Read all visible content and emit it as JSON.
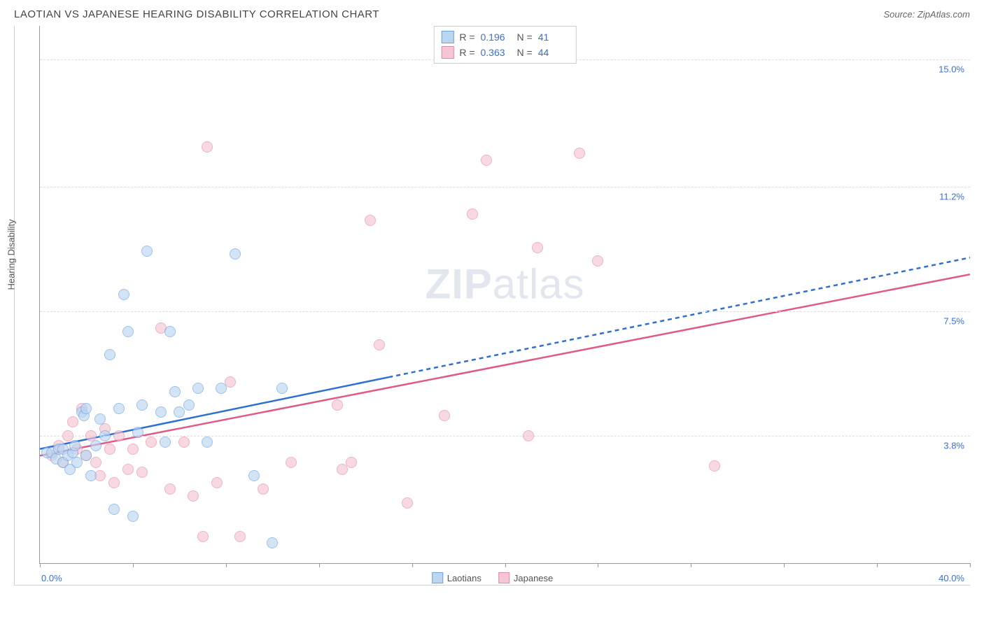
{
  "header": {
    "title": "LAOTIAN VS JAPANESE HEARING DISABILITY CORRELATION CHART",
    "source": "Source: ZipAtlas.com"
  },
  "watermark": {
    "bold": "ZIP",
    "rest": "atlas"
  },
  "chart": {
    "type": "scatter",
    "ylabel": "Hearing Disability",
    "xlim": [
      0,
      40
    ],
    "ylim": [
      0,
      16
    ],
    "x_min_label": "0.0%",
    "x_max_label": "40.0%",
    "yticks": [
      {
        "v": 3.8,
        "label": "3.8%"
      },
      {
        "v": 7.5,
        "label": "7.5%"
      },
      {
        "v": 11.2,
        "label": "11.2%"
      },
      {
        "v": 15.0,
        "label": "15.0%"
      }
    ],
    "xtick_positions": [
      0,
      4,
      8,
      12,
      16,
      20,
      24,
      28,
      32,
      36,
      40
    ],
    "background_color": "#ffffff",
    "grid_color": "#dddddd",
    "axis_color": "#999999",
    "tick_label_color": "#3b6fd4",
    "series": {
      "laotians": {
        "label": "Laotians",
        "fill": "#bcd6f2",
        "stroke": "#6aa3e0",
        "line_color": "#2f6fd0",
        "marker_radius": 8,
        "opacity": 0.65,
        "R": "0.196",
        "N": "41",
        "trend": {
          "x0": 0,
          "y0": 3.4,
          "x1": 40,
          "y1": 9.1,
          "solid_until_x": 15
        },
        "points": [
          {
            "x": 0.3,
            "y": 3.3
          },
          {
            "x": 0.5,
            "y": 3.3
          },
          {
            "x": 0.7,
            "y": 3.1
          },
          {
            "x": 0.8,
            "y": 3.4
          },
          {
            "x": 1.0,
            "y": 3.4
          },
          {
            "x": 1.0,
            "y": 3.0
          },
          {
            "x": 1.2,
            "y": 3.2
          },
          {
            "x": 1.3,
            "y": 2.8
          },
          {
            "x": 1.4,
            "y": 3.3
          },
          {
            "x": 1.5,
            "y": 3.5
          },
          {
            "x": 1.6,
            "y": 3.0
          },
          {
            "x": 1.8,
            "y": 4.5
          },
          {
            "x": 1.9,
            "y": 4.4
          },
          {
            "x": 2.0,
            "y": 3.2
          },
          {
            "x": 2.0,
            "y": 4.6
          },
          {
            "x": 2.2,
            "y": 2.6
          },
          {
            "x": 2.4,
            "y": 3.5
          },
          {
            "x": 2.6,
            "y": 4.3
          },
          {
            "x": 2.8,
            "y": 3.8
          },
          {
            "x": 3.0,
            "y": 6.2
          },
          {
            "x": 3.2,
            "y": 1.6
          },
          {
            "x": 3.4,
            "y": 4.6
          },
          {
            "x": 3.6,
            "y": 8.0
          },
          {
            "x": 3.8,
            "y": 6.9
          },
          {
            "x": 4.0,
            "y": 1.4
          },
          {
            "x": 4.2,
            "y": 3.9
          },
          {
            "x": 4.4,
            "y": 4.7
          },
          {
            "x": 4.6,
            "y": 9.3
          },
          {
            "x": 5.2,
            "y": 4.5
          },
          {
            "x": 5.4,
            "y": 3.6
          },
          {
            "x": 5.6,
            "y": 6.9
          },
          {
            "x": 5.8,
            "y": 5.1
          },
          {
            "x": 6.0,
            "y": 4.5
          },
          {
            "x": 6.4,
            "y": 4.7
          },
          {
            "x": 6.8,
            "y": 5.2
          },
          {
            "x": 7.2,
            "y": 3.6
          },
          {
            "x": 7.8,
            "y": 5.2
          },
          {
            "x": 8.4,
            "y": 9.2
          },
          {
            "x": 9.2,
            "y": 2.6
          },
          {
            "x": 10.0,
            "y": 0.6
          },
          {
            "x": 10.4,
            "y": 5.2
          }
        ]
      },
      "japanese": {
        "label": "Japanese",
        "fill": "#f5c6d3",
        "stroke": "#e48aa4",
        "line_color": "#e05a86",
        "marker_radius": 8,
        "opacity": 0.65,
        "R": "0.363",
        "N": "44",
        "trend": {
          "x0": 0,
          "y0": 3.2,
          "x1": 40,
          "y1": 8.6,
          "solid_until_x": 40
        },
        "points": [
          {
            "x": 0.5,
            "y": 3.2
          },
          {
            "x": 0.8,
            "y": 3.5
          },
          {
            "x": 1.0,
            "y": 3.0
          },
          {
            "x": 1.2,
            "y": 3.8
          },
          {
            "x": 1.4,
            "y": 4.2
          },
          {
            "x": 1.6,
            "y": 3.4
          },
          {
            "x": 1.8,
            "y": 4.6
          },
          {
            "x": 2.0,
            "y": 3.2
          },
          {
            "x": 2.2,
            "y": 3.8
          },
          {
            "x": 2.4,
            "y": 3.0
          },
          {
            "x": 2.6,
            "y": 2.6
          },
          {
            "x": 2.8,
            "y": 4.0
          },
          {
            "x": 3.0,
            "y": 3.4
          },
          {
            "x": 3.2,
            "y": 2.4
          },
          {
            "x": 3.4,
            "y": 3.8
          },
          {
            "x": 3.8,
            "y": 2.8
          },
          {
            "x": 4.0,
            "y": 3.4
          },
          {
            "x": 4.4,
            "y": 2.7
          },
          {
            "x": 4.8,
            "y": 3.6
          },
          {
            "x": 5.2,
            "y": 7.0
          },
          {
            "x": 5.6,
            "y": 2.2
          },
          {
            "x": 6.2,
            "y": 3.6
          },
          {
            "x": 6.6,
            "y": 2.0
          },
          {
            "x": 7.0,
            "y": 0.8
          },
          {
            "x": 7.2,
            "y": 12.4
          },
          {
            "x": 7.6,
            "y": 2.4
          },
          {
            "x": 8.2,
            "y": 5.4
          },
          {
            "x": 8.6,
            "y": 0.8
          },
          {
            "x": 9.6,
            "y": 2.2
          },
          {
            "x": 10.8,
            "y": 3.0
          },
          {
            "x": 12.8,
            "y": 4.7
          },
          {
            "x": 13.0,
            "y": 2.8
          },
          {
            "x": 13.4,
            "y": 3.0
          },
          {
            "x": 14.2,
            "y": 10.2
          },
          {
            "x": 14.6,
            "y": 6.5
          },
          {
            "x": 15.8,
            "y": 1.8
          },
          {
            "x": 17.4,
            "y": 4.4
          },
          {
            "x": 18.6,
            "y": 10.4
          },
          {
            "x": 19.2,
            "y": 12.0
          },
          {
            "x": 21.0,
            "y": 3.8
          },
          {
            "x": 21.4,
            "y": 9.4
          },
          {
            "x": 23.2,
            "y": 12.2
          },
          {
            "x": 24.0,
            "y": 9.0
          },
          {
            "x": 29.0,
            "y": 2.9
          }
        ]
      }
    }
  },
  "legend_bottom": [
    {
      "label": "Laotians",
      "fill": "#bcd6f2",
      "stroke": "#6aa3e0"
    },
    {
      "label": "Japanese",
      "fill": "#f5c6d3",
      "stroke": "#e48aa4"
    }
  ]
}
